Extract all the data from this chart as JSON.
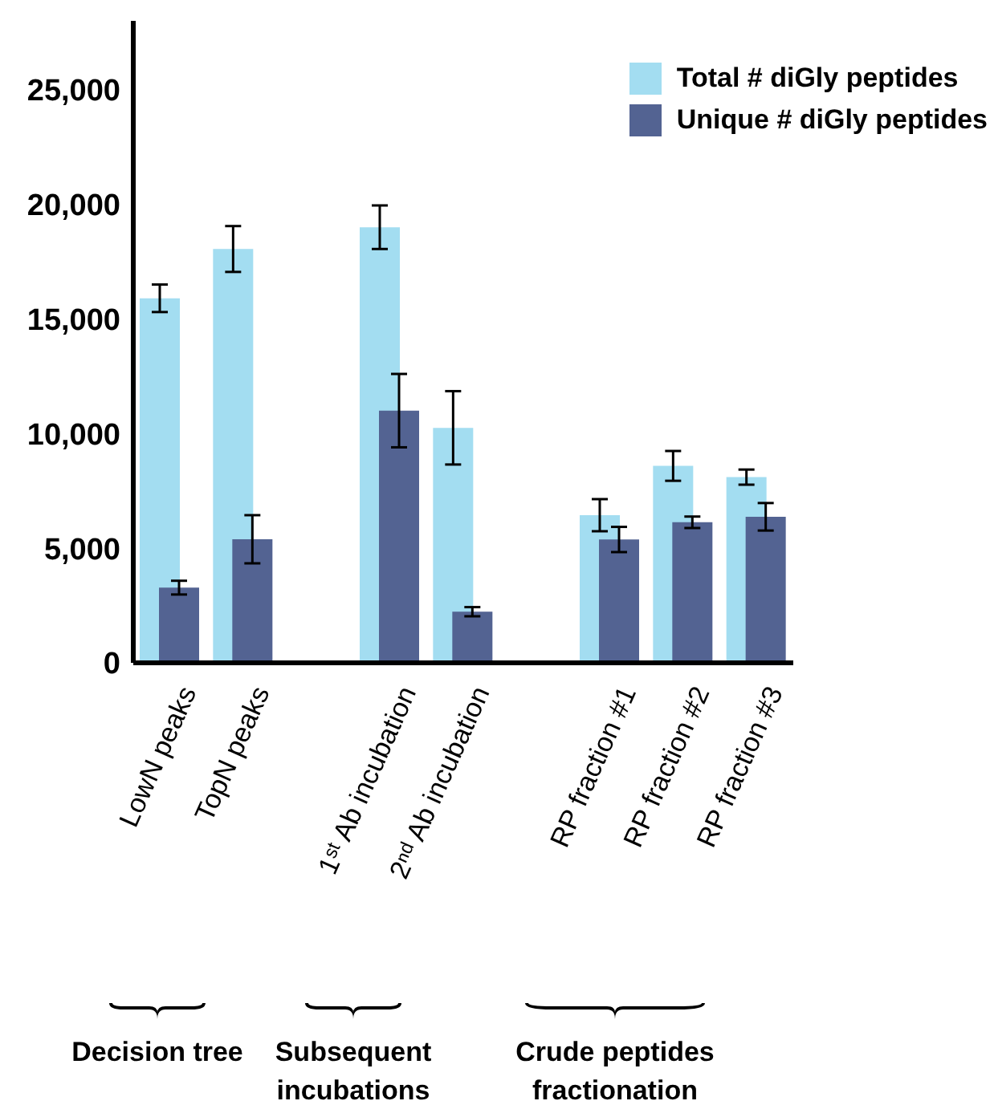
{
  "chart_data": {
    "type": "bar",
    "categories": [
      "LowN peaks",
      "TopN peaks",
      null,
      "1ˢᵗ Ab incubation",
      "2ⁿᵈ Ab incubation",
      null,
      "RP fraction #1",
      "RP fraction #2",
      "RP fraction #3"
    ],
    "series": [
      {
        "name": "Total # diGly peptides",
        "color": "#a3ddf1",
        "values": [
          15900,
          18050,
          null,
          19000,
          10250,
          null,
          6440,
          8590,
          8100
        ],
        "errors": [
          600,
          1000,
          null,
          950,
          1600,
          null,
          700,
          650,
          330
        ]
      },
      {
        "name": "Unique # diGly peptides",
        "color": "#536392",
        "values": [
          3280,
          5390,
          null,
          11000,
          2230,
          null,
          5380,
          6130,
          6370
        ],
        "errors": [
          300,
          1050,
          null,
          1600,
          200,
          null,
          550,
          250,
          600
        ]
      }
    ],
    "ylim": [
      0,
      28000
    ],
    "yticks": [
      {
        "value": 0,
        "label": "0"
      },
      {
        "value": 5000,
        "label": "5,000"
      },
      {
        "value": 10000,
        "label": "10,000"
      },
      {
        "value": 15000,
        "label": "15,000"
      },
      {
        "value": 20000,
        "label": "20,000"
      },
      {
        "value": 25000,
        "label": "25,000"
      }
    ],
    "legend": "top right",
    "annotations": [
      "Decision tree",
      "Subsequent incubations",
      "Crude peptides fractionation"
    ]
  }
}
